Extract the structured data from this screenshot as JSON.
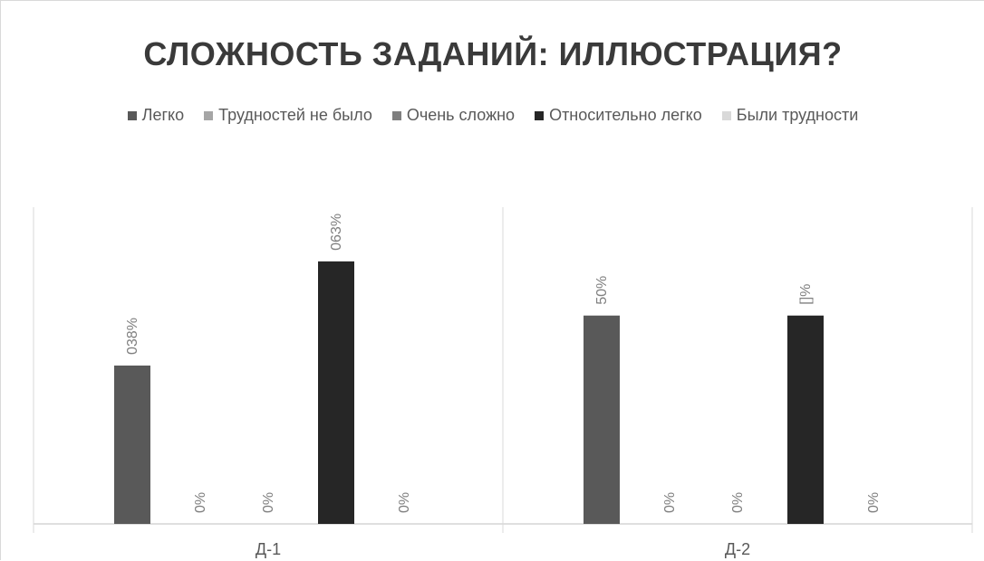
{
  "chart_data": {
    "type": "bar",
    "title": "СЛОЖНОСТЬ ЗАДАНИЙ: ИЛЛЮСТРАЦИЯ?",
    "categories": [
      "Д-1",
      "Д-2"
    ],
    "series": [
      {
        "name": "Легко",
        "color": "#595959",
        "values": [
          38,
          50
        ],
        "labels": [
          "038%",
          "50%"
        ]
      },
      {
        "name": "Трудностей не было",
        "color": "#a6a6a6",
        "values": [
          0,
          0
        ],
        "labels": [
          "0%",
          "0%"
        ]
      },
      {
        "name": "Очень сложно",
        "color": "#7f7f7f",
        "values": [
          0,
          0
        ],
        "labels": [
          "0%",
          "0%"
        ]
      },
      {
        "name": "Относительно легко",
        "color": "#262626",
        "values": [
          63,
          50
        ],
        "labels": [
          "063%",
          "[]%"
        ]
      },
      {
        "name": "Были трудности",
        "color": "#d9d9d9",
        "values": [
          0,
          0
        ],
        "labels": [
          "0%",
          "0%"
        ]
      }
    ],
    "ylim": [
      0,
      76
    ],
    "grid": false,
    "legend": "top"
  }
}
